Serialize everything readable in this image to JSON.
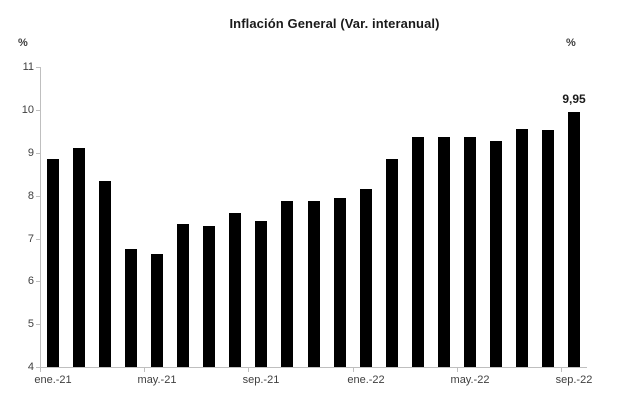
{
  "chart_data": {
    "type": "bar",
    "title": "Inflación General (Var. interanual)",
    "y_axis_unit_left": "%",
    "y_axis_unit_right": "%",
    "categories": [
      "ene.-21",
      "feb.-21",
      "mar.-21",
      "abr.-21",
      "may.-21",
      "jun.-21",
      "jul.-21",
      "ago.-21",
      "sep.-21",
      "oct.-21",
      "nov.-21",
      "dic.-21",
      "ene.-22",
      "feb.-22",
      "mar.-22",
      "abr.-22",
      "may.-22",
      "jun.-22",
      "jul.-22",
      "ago.-22",
      "sep.-22"
    ],
    "values": [
      8.85,
      9.12,
      8.34,
      6.76,
      6.64,
      7.33,
      7.3,
      7.59,
      7.41,
      7.89,
      7.87,
      7.96,
      8.15,
      8.85,
      9.38,
      9.37,
      9.37,
      9.29,
      9.56,
      9.53,
      9.95
    ],
    "x_tick_labels": [
      "ene.-21",
      "may.-21",
      "sep.-21",
      "ene.-22",
      "may.-22",
      "sep.-22"
    ],
    "x_tick_every": 4,
    "y_ticks": [
      11,
      10,
      9,
      8,
      7,
      6,
      5,
      4
    ],
    "ylim": [
      4,
      11
    ],
    "grid": false,
    "legend": false,
    "annotation": {
      "category": "sep.-22",
      "text": "9,95",
      "value": 9.95
    },
    "colors": {
      "bar": "#000000",
      "axis": "#bfbfbf",
      "tick_text": "#404040",
      "title_text": "#1a1a1a"
    }
  }
}
